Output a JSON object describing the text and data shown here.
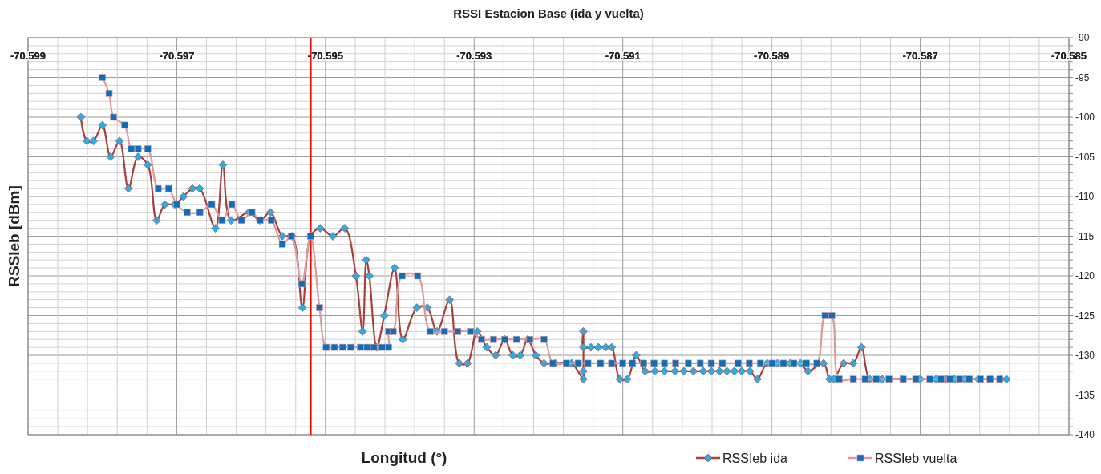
{
  "chart_data": {
    "type": "line",
    "title": "RSSI Estacion Base (ida y vuelta)",
    "xlabel": "Longitud (°)",
    "ylabel": "RSSIeb [dBm]",
    "xlim": [
      -70.599,
      -70.585
    ],
    "ylim": [
      -140,
      -90
    ],
    "xticks": [
      -70.599,
      {
        "value": -70.5986,
        "label": null
      },
      {
        "value": -70.5982,
        "label": null
      },
      {
        "value": -70.5978,
        "label": null
      },
      {
        "value": -70.5974,
        "label": null
      },
      -70.597,
      {
        "value": -70.5966,
        "label": null
      },
      {
        "value": -70.5962,
        "label": null
      },
      {
        "value": -70.5958,
        "label": null
      },
      {
        "value": -70.5954,
        "label": null
      },
      -70.595,
      {
        "value": -70.5946,
        "label": null
      },
      {
        "value": -70.5942,
        "label": null
      },
      {
        "value": -70.5938,
        "label": null
      },
      {
        "value": -70.5934,
        "label": null
      },
      -70.593,
      {
        "value": -70.5926,
        "label": null
      },
      {
        "value": -70.5922,
        "label": null
      },
      {
        "value": -70.5918,
        "label": null
      },
      {
        "value": -70.5914,
        "label": null
      },
      -70.591,
      {
        "value": -70.5906,
        "label": null
      },
      {
        "value": -70.5902,
        "label": null
      },
      {
        "value": -70.5898,
        "label": null
      },
      {
        "value": -70.5894,
        "label": null
      },
      -70.589,
      {
        "value": -70.5886,
        "label": null
      },
      {
        "value": -70.5882,
        "label": null
      },
      {
        "value": -70.5878,
        "label": null
      },
      {
        "value": -70.5874,
        "label": null
      },
      -70.587,
      {
        "value": -70.5866,
        "label": null
      },
      {
        "value": -70.5862,
        "label": null
      },
      {
        "value": -70.5858,
        "label": null
      },
      {
        "value": -70.5854,
        "label": null
      },
      -70.585
    ],
    "yticks": [
      -90,
      {
        "value": -91,
        "label": null
      },
      {
        "value": -92,
        "label": null
      },
      {
        "value": -93,
        "label": null
      },
      {
        "value": -94,
        "label": null
      },
      -95,
      {
        "value": -96,
        "label": null
      },
      {
        "value": -97,
        "label": null
      },
      {
        "value": -98,
        "label": null
      },
      {
        "value": -99,
        "label": null
      },
      -100,
      {
        "value": -101,
        "label": null
      },
      {
        "value": -102,
        "label": null
      },
      {
        "value": -103,
        "label": null
      },
      {
        "value": -104,
        "label": null
      },
      -105,
      {
        "value": -106,
        "label": null
      },
      {
        "value": -107,
        "label": null
      },
      {
        "value": -108,
        "label": null
      },
      {
        "value": -109,
        "label": null
      },
      -110,
      {
        "value": -111,
        "label": null
      },
      {
        "value": -112,
        "label": null
      },
      {
        "value": -113,
        "label": null
      },
      {
        "value": -114,
        "label": null
      },
      -115,
      {
        "value": -116,
        "label": null
      },
      {
        "value": -117,
        "label": null
      },
      {
        "value": -118,
        "label": null
      },
      {
        "value": -119,
        "label": null
      },
      -120,
      {
        "value": -121,
        "label": null
      },
      {
        "value": -122,
        "label": null
      },
      {
        "value": -123,
        "label": null
      },
      {
        "value": -124,
        "label": null
      },
      -125,
      {
        "value": -126,
        "label": null
      },
      {
        "value": -127,
        "label": null
      },
      {
        "value": -128,
        "label": null
      },
      {
        "value": -129,
        "label": null
      },
      -130,
      {
        "value": -131,
        "label": null
      },
      {
        "value": -132,
        "label": null
      },
      {
        "value": -133,
        "label": null
      },
      {
        "value": -134,
        "label": null
      },
      -135,
      {
        "value": -136,
        "label": null
      },
      {
        "value": -137,
        "label": null
      },
      {
        "value": -138,
        "label": null
      },
      {
        "value": -139,
        "label": null
      },
      -140
    ],
    "grid": true,
    "legend": "bottom right",
    "ref_lines": [
      {
        "axis": "x",
        "value": -70.5952,
        "color": "#ff0000"
      }
    ],
    "series": [
      {
        "name": "RSSIeb ida",
        "color": "#a5403b",
        "marker": "diamond",
        "x": [
          -70.59829,
          -70.59821,
          -70.59812,
          -70.598,
          -70.59789,
          -70.59777,
          -70.59765,
          -70.59752,
          -70.59739,
          -70.59727,
          -70.59716,
          -70.59703,
          -70.59691,
          -70.59679,
          -70.59669,
          -70.59648,
          -70.59638,
          -70.59627,
          -70.59603,
          -70.59588,
          -70.59574,
          -70.59558,
          -70.59545,
          -70.59531,
          -70.5952,
          -70.59507,
          -70.5949,
          -70.59474,
          -70.59459,
          -70.5945,
          -70.59445,
          -70.59441,
          -70.59431,
          -70.59421,
          -70.59407,
          -70.59396,
          -70.59377,
          -70.59363,
          -70.5935,
          -70.59333,
          -70.5932,
          -70.59309,
          -70.59296,
          -70.59283,
          -70.59271,
          -70.59259,
          -70.59248,
          -70.59238,
          -70.59228,
          -70.59217,
          -70.59206,
          -70.59191,
          -70.59169,
          -70.59153,
          -70.59153,
          -70.59153,
          -70.59153,
          -70.59143,
          -70.59133,
          -70.59123,
          -70.59115,
          -70.59104,
          -70.59094,
          -70.59082,
          -70.5907,
          -70.59057,
          -70.59044,
          -70.5903,
          -70.59018,
          -70.59005,
          -70.58992,
          -70.58981,
          -70.5897,
          -70.5896,
          -70.5895,
          -70.5894,
          -70.58929,
          -70.58919,
          -70.58906,
          -70.58892,
          -70.58875,
          -70.58861,
          -70.58851,
          -70.5883,
          -70.58822,
          -70.58816,
          -70.58803,
          -70.5879,
          -70.58779,
          -70.58768,
          -70.58751,
          -70.58724,
          -70.587,
          -70.58679,
          -70.58665,
          -70.58654,
          -70.5864,
          -70.58622,
          -70.58606,
          -70.58592,
          -70.58584
        ],
        "values": [
          -100,
          -103,
          -103,
          -101,
          -105,
          -103,
          -109,
          -105,
          -106,
          -113,
          -111,
          -111,
          -110,
          -109,
          -109,
          -114,
          -106,
          -113,
          -112,
          -113,
          -112,
          -115,
          -115,
          -124,
          -115,
          -114,
          -115,
          -114,
          -120,
          -127,
          -118,
          -120,
          -129,
          -125,
          -119,
          -128,
          -124,
          -124,
          -127,
          -123,
          -131,
          -131,
          -127,
          -129,
          -130,
          -128,
          -130,
          -130,
          -128,
          -130,
          -131,
          -131,
          -131,
          -133,
          -132,
          -127,
          -129,
          -129,
          -129,
          -129,
          -129,
          -133,
          -133,
          -130,
          -132,
          -132,
          -132,
          -132,
          -132,
          -132,
          -132,
          -132,
          -132,
          -132,
          -132,
          -132,
          -132,
          -133,
          -131,
          -131,
          -131,
          -131,
          -132,
          -131,
          -133,
          -133,
          -131,
          -131,
          -129,
          -133,
          -133,
          -133,
          -133,
          -133,
          -133,
          -133,
          -133,
          -133,
          -133,
          -133,
          -133
        ]
      },
      {
        "name": "RSSIeb vuelta",
        "color": "#dc9a98",
        "marker": "square",
        "x": [
          -70.598,
          -70.59791,
          -70.59785,
          -70.5977,
          -70.59761,
          -70.59752,
          -70.59739,
          -70.59725,
          -70.59711,
          -70.597,
          -70.59686,
          -70.59669,
          -70.59653,
          -70.59639,
          -70.59626,
          -70.59613,
          -70.59599,
          -70.59588,
          -70.59573,
          -70.59558,
          -70.59546,
          -70.59532,
          -70.5952,
          -70.59508,
          -70.59499,
          -70.59488,
          -70.59477,
          -70.59466,
          -70.59453,
          -70.59444,
          -70.59435,
          -70.59424,
          -70.59415,
          -70.59415,
          -70.59409,
          -70.59397,
          -70.59376,
          -70.59359,
          -70.5934,
          -70.59322,
          -70.59305,
          -70.5929,
          -70.59274,
          -70.59259,
          -70.59243,
          -70.59225,
          -70.59206,
          -70.59194,
          -70.59176,
          -70.5916,
          -70.59147,
          -70.5913,
          -70.59115,
          -70.591,
          -70.59087,
          -70.59072,
          -70.59058,
          -70.59044,
          -70.59029,
          -70.59012,
          -70.58996,
          -70.58981,
          -70.58966,
          -70.58945,
          -70.5893,
          -70.58915,
          -70.58899,
          -70.58884,
          -70.5887,
          -70.58853,
          -70.58839,
          -70.58828,
          -70.58819,
          -70.58809,
          -70.5879,
          -70.58774,
          -70.58759,
          -70.58742,
          -70.58723,
          -70.58706,
          -70.58687,
          -70.58672,
          -70.5866,
          -70.58647,
          -70.58634,
          -70.58619,
          -70.58606,
          -70.58593
        ],
        "values": [
          -95,
          -97,
          -100,
          -101,
          -104,
          -104,
          -104,
          -109,
          -109,
          -111,
          -112,
          -112,
          -111,
          -113,
          -111,
          -113,
          -112,
          -113,
          -113,
          -116,
          -115,
          -121,
          -115,
          -124,
          -129,
          -129,
          -129,
          -129,
          -129,
          -129,
          -129,
          -129,
          -129,
          -127,
          -127,
          -120,
          -120,
          -127,
          -127,
          -127,
          -127,
          -128,
          -128,
          -128,
          -128,
          -128,
          -128,
          -131,
          -131,
          -131,
          -131,
          -131,
          -131,
          -131,
          -131,
          -131,
          -131,
          -131,
          -131,
          -131,
          -131,
          -131,
          -131,
          -131,
          -131,
          -131,
          -131,
          -131,
          -131,
          -131,
          -131,
          -125,
          -125,
          -133,
          -133,
          -133,
          -133,
          -133,
          -133,
          -133,
          -133,
          -133,
          -133,
          -133,
          -133,
          -133,
          -133,
          -133
        ]
      }
    ]
  }
}
